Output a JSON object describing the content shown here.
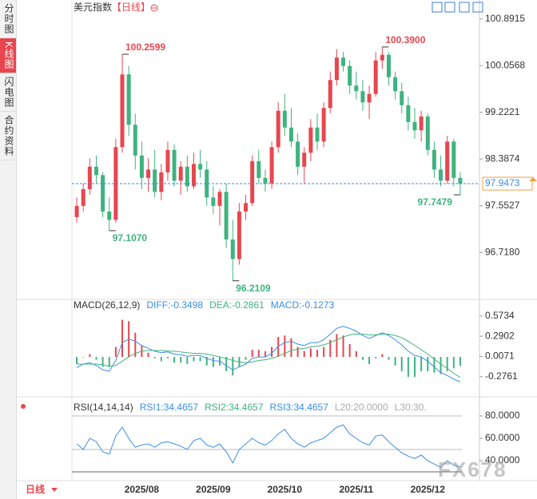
{
  "sidebar": [
    "分时图",
    "K线图",
    "闪电图",
    "合约资料"
  ],
  "period_tab": "日线",
  "watermark": "FX678",
  "chart_data": [
    {
      "type": "candlestick",
      "title": "美元指数",
      "subtitle": "【日线】",
      "up_color": "#e8464f",
      "down_color": "#3fb37f",
      "ylim": [
        95.95,
        101.03
      ],
      "yticks": [
        100.8915,
        100.0568,
        99.2221,
        98.3874,
        97.5527,
        {
          "value": 96.718,
          "label": "96.7180"
        }
      ],
      "last_price": 97.9473,
      "last_color": "#3a8ee6",
      "annotations": [
        {
          "value": 100.2599,
          "label": "100.2599"
        },
        {
          "value": 97.107,
          "label": "97.1070"
        },
        {
          "value": 96.2109,
          "label": "96.2109"
        },
        {
          "value": 100.39,
          "label": "100.3900"
        },
        {
          "value": 97.7479,
          "label": "97.7479"
        }
      ],
      "ohlc": [
        [
          97.35,
          97.7,
          97.25,
          97.55
        ],
        [
          97.55,
          97.95,
          97.45,
          97.85
        ],
        [
          97.85,
          98.4,
          97.75,
          98.25
        ],
        [
          98.25,
          98.45,
          97.95,
          98.1
        ],
        [
          98.1,
          98.15,
          97.35,
          97.45
        ],
        [
          97.45,
          97.7,
          97.107,
          97.3
        ],
        [
          97.3,
          98.75,
          97.25,
          98.6
        ],
        [
          98.6,
          100.2599,
          98.5,
          99.9
        ],
        [
          99.9,
          100.05,
          98.8,
          99.0
        ],
        [
          99.0,
          99.2,
          98.2,
          98.45
        ],
        [
          98.45,
          98.7,
          97.85,
          98.05
        ],
        [
          98.05,
          98.4,
          97.8,
          98.2
        ],
        [
          98.2,
          98.55,
          97.7,
          97.8
        ],
        [
          97.8,
          98.3,
          97.65,
          98.15
        ],
        [
          98.15,
          98.7,
          98.0,
          98.55
        ],
        [
          98.55,
          98.65,
          97.9,
          98.0
        ],
        [
          98.0,
          98.35,
          97.75,
          98.25
        ],
        [
          98.25,
          98.45,
          97.8,
          97.9
        ],
        [
          97.9,
          98.5,
          97.85,
          98.3
        ],
        [
          98.3,
          98.55,
          98.05,
          98.2
        ],
        [
          98.2,
          98.35,
          97.55,
          97.7
        ],
        [
          97.7,
          97.9,
          97.4,
          97.55
        ],
        [
          97.55,
          97.85,
          97.2,
          97.8
        ],
        [
          97.8,
          97.95,
          96.8,
          96.95
        ],
        [
          96.95,
          97.3,
          96.2109,
          96.6
        ],
        [
          96.6,
          97.6,
          96.5,
          97.45
        ],
        [
          97.45,
          97.75,
          97.3,
          97.6
        ],
        [
          97.6,
          98.45,
          97.55,
          98.35
        ],
        [
          98.35,
          98.55,
          97.95,
          98.05
        ],
        [
          98.05,
          98.2,
          97.8,
          97.95
        ],
        [
          97.95,
          98.7,
          97.85,
          98.6
        ],
        [
          98.6,
          99.4,
          98.5,
          99.25
        ],
        [
          99.25,
          99.55,
          98.8,
          98.95
        ],
        [
          98.95,
          99.3,
          98.6,
          98.7
        ],
        [
          98.7,
          98.85,
          98.1,
          98.25
        ],
        [
          98.25,
          98.6,
          97.95,
          98.5
        ],
        [
          98.5,
          99.1,
          98.35,
          98.95
        ],
        [
          98.95,
          99.2,
          98.55,
          98.7
        ],
        [
          98.7,
          99.4,
          98.6,
          99.3
        ],
        [
          99.3,
          99.95,
          99.2,
          99.8
        ],
        [
          99.8,
          100.35,
          99.7,
          100.2
        ],
        [
          100.2,
          100.3,
          99.95,
          100.05
        ],
        [
          100.05,
          100.15,
          99.55,
          99.7
        ],
        [
          99.7,
          99.95,
          99.45,
          99.6
        ],
        [
          99.6,
          99.8,
          99.25,
          99.4
        ],
        [
          99.4,
          99.7,
          99.1,
          99.55
        ],
        [
          99.55,
          100.3,
          99.5,
          100.15
        ],
        [
          100.15,
          100.39,
          100.0,
          100.25
        ],
        [
          100.25,
          100.3,
          99.7,
          99.85
        ],
        [
          99.85,
          99.95,
          99.45,
          99.6
        ],
        [
          99.6,
          99.75,
          99.2,
          99.35
        ],
        [
          99.35,
          99.5,
          98.9,
          99.05
        ],
        [
          99.05,
          99.3,
          98.75,
          98.9
        ],
        [
          98.9,
          99.25,
          98.7,
          99.15
        ],
        [
          99.15,
          99.2,
          98.45,
          98.55
        ],
        [
          98.55,
          98.7,
          98.05,
          98.2
        ],
        [
          98.2,
          98.45,
          97.9,
          98.0
        ],
        [
          98.0,
          98.8,
          97.95,
          98.7
        ],
        [
          98.7,
          98.75,
          97.9,
          98.05
        ],
        [
          98.05,
          98.15,
          97.7479,
          97.9473
        ]
      ]
    },
    {
      "type": "macd",
      "legend": [
        {
          "label": "MACD(26,12,9)",
          "color": "#333333"
        },
        {
          "label": "DIFF:-0.3498",
          "color": "#3a8ee6"
        },
        {
          "label": "DEA:-0.2861",
          "color": "#3fb37f"
        },
        {
          "label": "MACD:-0.1273",
          "color": "#3a8ee6"
        }
      ],
      "ylim": [
        -0.48,
        0.75
      ],
      "yticks": [
        0.5734,
        0.2902,
        0.0071,
        -0.2761
      ],
      "up_color": "#e8464f",
      "down_color": "#3fb37f",
      "series": [
        {
          "color": "#3a8ee6",
          "values": [
            -0.15,
            -0.1,
            -0.08,
            -0.12,
            -0.18,
            -0.2,
            -0.05,
            0.2,
            0.25,
            0.22,
            0.16,
            0.12,
            0.08,
            0.06,
            0.07,
            0.04,
            0.03,
            0.01,
            0.02,
            0.02,
            -0.02,
            -0.05,
            -0.06,
            -0.12,
            -0.18,
            -0.14,
            -0.1,
            -0.02,
            0.0,
            0.0,
            0.05,
            0.15,
            0.2,
            0.22,
            0.18,
            0.16,
            0.2,
            0.2,
            0.24,
            0.32,
            0.4,
            0.43,
            0.4,
            0.36,
            0.3,
            0.26,
            0.3,
            0.34,
            0.3,
            0.24,
            0.17,
            0.08,
            0.02,
            0.0,
            -0.06,
            -0.14,
            -0.22,
            -0.26,
            -0.31,
            -0.3498
          ]
        },
        {
          "color": "#3fb37f",
          "values": [
            -0.1,
            -0.1,
            -0.1,
            -0.1,
            -0.11,
            -0.13,
            -0.12,
            -0.06,
            0.0,
            0.05,
            0.08,
            0.09,
            0.09,
            0.09,
            0.08,
            0.08,
            0.07,
            0.06,
            0.05,
            0.05,
            0.04,
            0.02,
            0.0,
            -0.02,
            -0.05,
            -0.07,
            -0.08,
            -0.07,
            -0.05,
            -0.04,
            -0.02,
            0.01,
            0.05,
            0.09,
            0.11,
            0.12,
            0.14,
            0.15,
            0.17,
            0.2,
            0.24,
            0.28,
            0.31,
            0.32,
            0.32,
            0.31,
            0.31,
            0.32,
            0.32,
            0.3,
            0.27,
            0.22,
            0.16,
            0.1,
            0.04,
            -0.03,
            -0.1,
            -0.16,
            -0.23,
            -0.2861
          ]
        }
      ],
      "histogram": [
        -0.1,
        0.0,
        0.04,
        -0.04,
        -0.14,
        -0.14,
        0.14,
        0.52,
        0.5,
        0.34,
        0.16,
        0.06,
        -0.02,
        -0.06,
        -0.02,
        -0.08,
        -0.08,
        -0.1,
        -0.06,
        -0.06,
        -0.12,
        -0.14,
        -0.12,
        -0.2,
        -0.26,
        -0.14,
        -0.04,
        0.1,
        0.1,
        0.08,
        0.14,
        0.28,
        0.3,
        0.26,
        0.14,
        0.08,
        0.12,
        0.1,
        0.14,
        0.24,
        0.32,
        0.3,
        0.18,
        0.08,
        -0.04,
        -0.1,
        -0.02,
        0.04,
        -0.04,
        -0.12,
        -0.2,
        -0.28,
        -0.28,
        -0.2,
        -0.2,
        -0.22,
        -0.24,
        -0.2,
        -0.16,
        -0.1273
      ]
    },
    {
      "type": "rsi",
      "legend": [
        {
          "label": "RSI(14,14,14)",
          "color": "#333333"
        },
        {
          "label": "RSI1:34.4657",
          "color": "#3a8ee6"
        },
        {
          "label": "RSI2:34.4657",
          "color": "#3fb37f"
        },
        {
          "label": "RSI3:34.4657",
          "color": "#3a8ee6"
        },
        {
          "label": "L20:20.0000",
          "color": "#aaaaaa"
        },
        {
          "label": "L30:30.",
          "color": "#aaaaaa"
        }
      ],
      "ylim": [
        23.6,
        91.4
      ],
      "yticks": [
        {
          "value": 80,
          "label": "80.0000"
        },
        {
          "value": 60,
          "label": "60.0000"
        },
        {
          "value": 40,
          "label": "40.0000"
        }
      ],
      "levels": [
        80,
        50,
        30
      ],
      "color": "#3a8ee6",
      "values": [
        55,
        50,
        60,
        57,
        48,
        46,
        62,
        70,
        60,
        52,
        54,
        55,
        52,
        56,
        57,
        55,
        53,
        50,
        58,
        60,
        54,
        52,
        55,
        48,
        38,
        50,
        55,
        60,
        56,
        54,
        58,
        64,
        68,
        60,
        55,
        52,
        56,
        58,
        60,
        65,
        70,
        72,
        64,
        60,
        56,
        54,
        62,
        63,
        57,
        52,
        47,
        44,
        42,
        45,
        40,
        37,
        34,
        40,
        36,
        34.4657
      ],
      "categories": [
        null,
        null,
        null,
        null,
        null,
        null,
        null,
        null,
        null,
        null,
        "2025/08",
        null,
        null,
        null,
        null,
        null,
        null,
        null,
        null,
        null,
        null,
        "2025/09",
        null,
        null,
        null,
        null,
        null,
        null,
        null,
        null,
        null,
        null,
        "2025/10",
        null,
        null,
        null,
        null,
        null,
        null,
        null,
        null,
        null,
        null,
        "2025/11",
        null,
        null,
        null,
        null,
        null,
        null,
        null,
        null,
        null,
        null,
        "2025/12",
        null,
        null,
        null,
        null,
        null
      ]
    }
  ]
}
